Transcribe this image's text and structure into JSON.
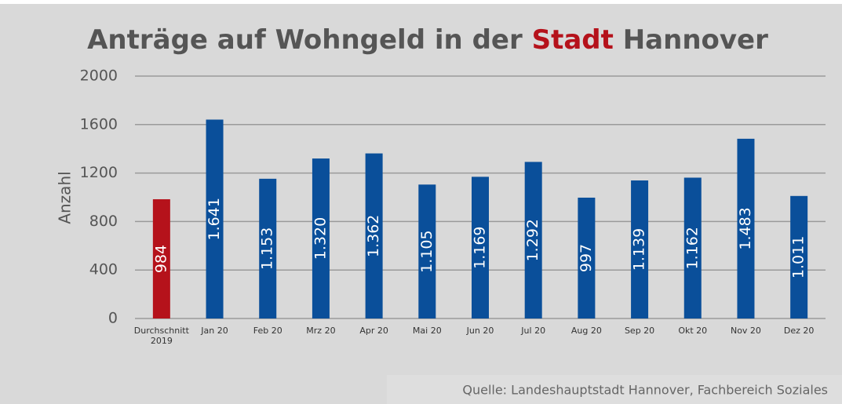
{
  "chart_data": {
    "type": "bar",
    "title": [
      {
        "text": "Anträge auf Wohngeld in der",
        "color": "#555555"
      },
      {
        "text": "Stadt",
        "color": "#b5121b"
      },
      {
        "text": "Hannover",
        "color": "#555555"
      }
    ],
    "y_label": "Anzahl",
    "categories": [
      "Durchschnitt\n2019",
      "Jan 20",
      "Feb 20",
      "Mrz 20",
      "Apr 20",
      "Mai 20",
      "Jun 20",
      "Jul 20",
      "Aug 20",
      "Sep 20",
      "Okt 20",
      "Nov 20",
      "Dez 20"
    ],
    "values": [
      984,
      1641,
      1153,
      1320,
      1362,
      1105,
      1169,
      1292,
      997,
      1139,
      1162,
      1483,
      1011
    ],
    "value_labels": [
      "984",
      "1.641",
      "1.153",
      "1.320",
      "1.362",
      "1.105",
      "1.169",
      "1.292",
      "997",
      "1.139",
      "1.162",
      "1.483",
      "1.011"
    ],
    "colors": [
      "#b5121b",
      "#0a4f9a",
      "#0a4f9a",
      "#0a4f9a",
      "#0a4f9a",
      "#0a4f9a",
      "#0a4f9a",
      "#0a4f9a",
      "#0a4f9a",
      "#0a4f9a",
      "#0a4f9a",
      "#0a4f9a",
      "#0a4f9a"
    ],
    "ylim": [
      0,
      2000
    ],
    "yticks": [
      0,
      400,
      800,
      1200,
      1600,
      2000
    ],
    "grid": true,
    "source": "Quelle: Landeshauptstadt Hannover, Fachbereich Soziales"
  }
}
